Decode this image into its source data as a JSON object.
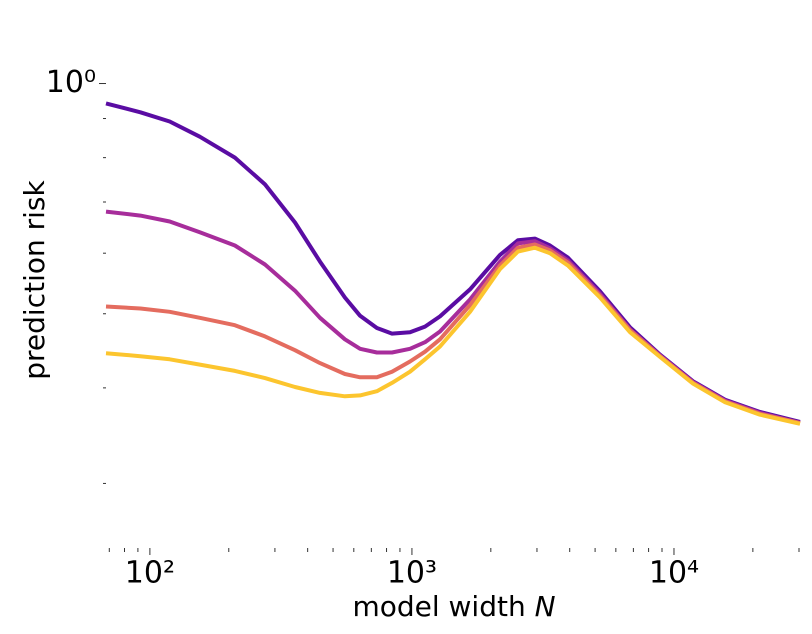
{
  "chart_data": {
    "type": "line",
    "ylabel": "prediction risk",
    "xlabel": {
      "text": "model width",
      "variable": "N"
    },
    "x": [
      68,
      92,
      119,
      155,
      211,
      275,
      358,
      446,
      555,
      634,
      735,
      839,
      983,
      1122,
      1280,
      1665,
      2168,
      2540,
      2946,
      3363,
      3939,
      5220,
      6795,
      8850,
      11830,
      15670,
      21300,
      30270
    ],
    "series": [
      {
        "color": "#5a0ca3",
        "values": [
          0.942,
          0.917,
          0.892,
          0.852,
          0.8,
          0.738,
          0.658,
          0.585,
          0.525,
          0.497,
          0.479,
          0.471,
          0.473,
          0.481,
          0.496,
          0.538,
          0.597,
          0.624,
          0.627,
          0.614,
          0.592,
          0.535,
          0.48,
          0.442,
          0.408,
          0.386,
          0.372,
          0.361
        ]
      },
      {
        "color": "#a72d9b",
        "values": [
          0.68,
          0.672,
          0.66,
          0.639,
          0.614,
          0.58,
          0.536,
          0.494,
          0.463,
          0.45,
          0.445,
          0.445,
          0.45,
          0.459,
          0.474,
          0.522,
          0.585,
          0.618,
          0.622,
          0.609,
          0.587,
          0.531,
          0.477,
          0.441,
          0.407,
          0.385,
          0.371,
          0.36
        ]
      },
      {
        "color": "#e46c5f",
        "values": [
          0.511,
          0.508,
          0.503,
          0.494,
          0.483,
          0.467,
          0.448,
          0.431,
          0.417,
          0.413,
          0.413,
          0.42,
          0.433,
          0.446,
          0.463,
          0.513,
          0.578,
          0.61,
          0.616,
          0.605,
          0.583,
          0.528,
          0.476,
          0.44,
          0.406,
          0.384,
          0.37,
          0.36
        ]
      },
      {
        "color": "#fcc52e",
        "values": [
          0.444,
          0.44,
          0.436,
          0.429,
          0.421,
          0.412,
          0.401,
          0.394,
          0.39,
          0.391,
          0.396,
          0.406,
          0.42,
          0.436,
          0.453,
          0.503,
          0.572,
          0.603,
          0.61,
          0.6,
          0.578,
          0.525,
          0.473,
          0.439,
          0.405,
          0.383,
          0.369,
          0.359
        ]
      }
    ],
    "xscale": "log",
    "yscale": "log",
    "xlim": [
      68,
      30800
    ],
    "ylim": [
      0.247,
      1.14
    ],
    "xticks": [
      {
        "value": 100,
        "label": "10²"
      },
      {
        "value": 1000,
        "label": "10³"
      },
      {
        "value": 10000,
        "label": "10⁴"
      }
    ],
    "xminor_ticks": [
      70,
      80,
      90,
      200,
      300,
      400,
      500,
      600,
      700,
      800,
      900,
      2000,
      3000,
      4000,
      5000,
      6000,
      7000,
      8000,
      9000,
      20000,
      30000
    ],
    "yticks": [
      {
        "value": 1,
        "label": "10⁰"
      }
    ],
    "yminor_ticks": [
      0.3,
      0.4,
      0.5,
      0.6,
      0.7,
      0.8,
      0.9
    ]
  }
}
